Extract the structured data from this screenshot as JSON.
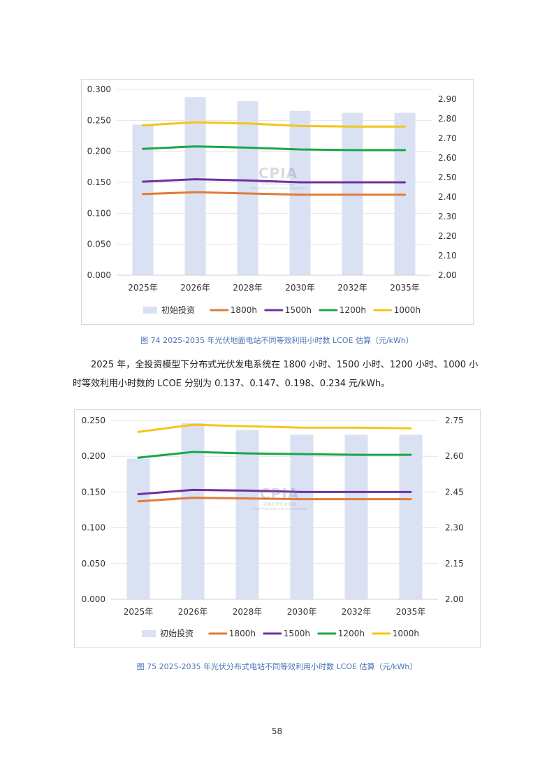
{
  "chart_data": [
    {
      "type": "bar",
      "title": "",
      "categories": [
        "2025年",
        "2026年",
        "2028年",
        "2030年",
        "2032年",
        "2035年"
      ],
      "bar_series": {
        "name": "初始投资",
        "axis": "right",
        "values": [
          2.77,
          2.91,
          2.89,
          2.84,
          2.83,
          2.83
        ]
      },
      "series": [
        {
          "name": "1800h",
          "axis": "left",
          "values": [
            0.131,
            0.134,
            0.132,
            0.13,
            0.13,
            0.13
          ]
        },
        {
          "name": "1500h",
          "axis": "left",
          "values": [
            0.151,
            0.155,
            0.153,
            0.15,
            0.15,
            0.15
          ]
        },
        {
          "name": "1200h",
          "axis": "left",
          "values": [
            0.204,
            0.208,
            0.206,
            0.203,
            0.202,
            0.202
          ]
        },
        {
          "name": "1000h",
          "axis": "left",
          "values": [
            0.242,
            0.247,
            0.245,
            0.241,
            0.24,
            0.24
          ]
        }
      ],
      "left_axis": {
        "min": 0,
        "max": 0.3,
        "ticks": [
          "0.000",
          "0.050",
          "0.100",
          "0.150",
          "0.200",
          "0.250",
          "0.300"
        ]
      },
      "right_axis": {
        "min": 2.0,
        "max": 2.95,
        "ticks": [
          "2.00",
          "2.10",
          "2.20",
          "2.30",
          "2.40",
          "2.50",
          "2.60",
          "2.70",
          "2.80",
          "2.90"
        ]
      },
      "legend_position": "bottom"
    },
    {
      "type": "bar",
      "title": "",
      "categories": [
        "2025年",
        "2026年",
        "2028年",
        "2030年",
        "2032年",
        "2035年"
      ],
      "bar_series": {
        "name": "初始投资",
        "axis": "right",
        "values": [
          2.59,
          2.74,
          2.71,
          2.69,
          2.69,
          2.69
        ]
      },
      "series": [
        {
          "name": "1800h",
          "axis": "left",
          "values": [
            0.137,
            0.142,
            0.141,
            0.14,
            0.14,
            0.14
          ]
        },
        {
          "name": "1500h",
          "axis": "left",
          "values": [
            0.147,
            0.153,
            0.152,
            0.15,
            0.15,
            0.15
          ]
        },
        {
          "name": "1200h",
          "axis": "left",
          "values": [
            0.198,
            0.206,
            0.204,
            0.203,
            0.202,
            0.202
          ]
        },
        {
          "name": "1000h",
          "axis": "left",
          "values": [
            0.234,
            0.244,
            0.242,
            0.24,
            0.24,
            0.239
          ]
        }
      ],
      "left_axis": {
        "min": 0,
        "max": 0.25,
        "ticks": [
          "0.000",
          "0.050",
          "0.100",
          "0.150",
          "0.200",
          "0.250"
        ]
      },
      "right_axis": {
        "min": 2.0,
        "max": 2.75,
        "ticks": [
          "2.00",
          "2.15",
          "2.30",
          "2.45",
          "2.60",
          "2.75"
        ]
      },
      "legend_position": "bottom"
    }
  ],
  "colors": {
    "bar": "#d9e1f2",
    "1800h": "#e07b39",
    "1500h": "#7030a0",
    "1200h": "#1aa64a",
    "1000h": "#f5c518",
    "grid": "#e4e4e4",
    "caption": "#4a74b4"
  },
  "watermark": {
    "logo": "CPIA",
    "sub": "中国光伏行业协会",
    "en": "China Photovoltaic Industry Association"
  },
  "captions": {
    "fig74": "图 74   2025-2035 年光伏地面电站不同等效利用小时数 LCOE 估算（元/kWh）",
    "fig75": "图 75   2025-2035 年光伏分布式电站不同等效利用小时数 LCOE 估算（元/kWh）"
  },
  "paragraph": {
    "line1": "2025 年，全投资模型下分布式光伏发电系统在 1800 小时、1500 小时、1200 小时、1000 小",
    "line2": "时等效利用小时数的 LCOE 分别为 0.137、0.147、0.198、0.234 元/kWh。"
  },
  "page_number": "58"
}
